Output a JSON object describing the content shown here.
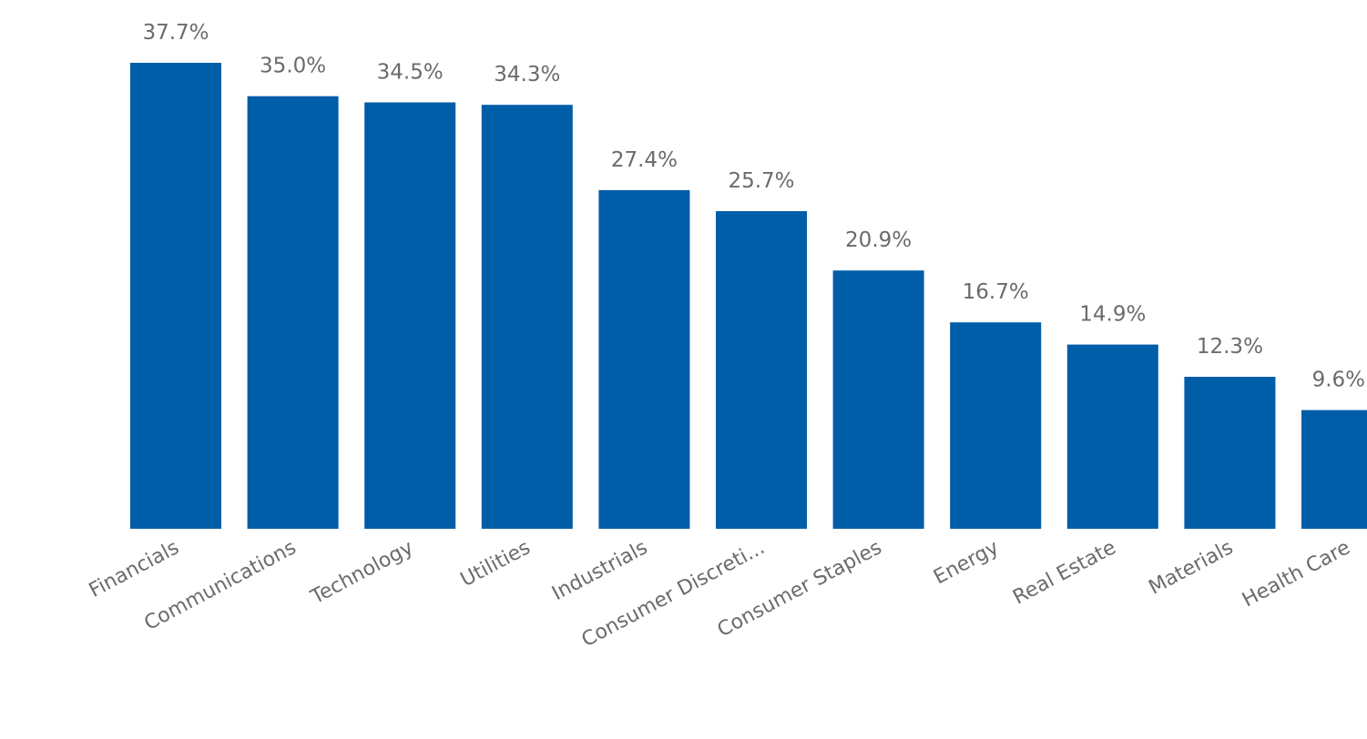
{
  "chart_data": {
    "type": "bar",
    "title": "",
    "xlabel": "",
    "ylabel": "",
    "categories": [
      "Financials",
      "Communications",
      "Technology",
      "Utilities",
      "Industrials",
      "Consumer Discreti...",
      "Consumer Staples",
      "Energy",
      "Real Estate",
      "Materials",
      "Health Care"
    ],
    "values": [
      37.7,
      35.0,
      34.5,
      34.3,
      27.4,
      25.7,
      20.9,
      16.7,
      14.9,
      12.3,
      9.6
    ],
    "value_labels": [
      "37.7%",
      "35.0%",
      "34.5%",
      "34.3%",
      "27.4%",
      "25.7%",
      "20.9%",
      "16.7%",
      "14.9%",
      "12.3%",
      "9.6%"
    ],
    "ylim": [
      0,
      37.7
    ],
    "grid": false,
    "legend": "none",
    "bar_color": "#005da8",
    "label_color": "#6b6b6b"
  }
}
